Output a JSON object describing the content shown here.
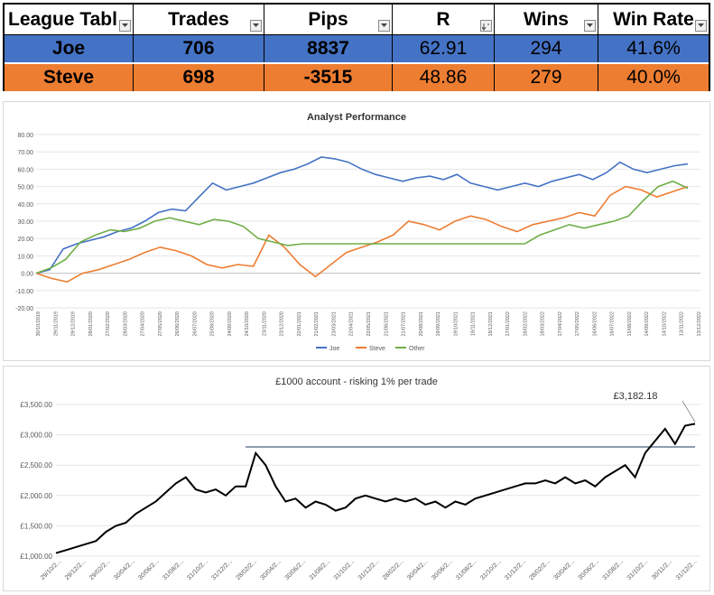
{
  "league": {
    "headers": [
      "League Tabl",
      "Trades",
      "Pips",
      "R",
      "Wins",
      "Win Rate"
    ],
    "rows": [
      {
        "name": "Joe",
        "trades": "706",
        "pips": "8837",
        "r": "62.91",
        "wins": "294",
        "win_rate": "41.6%"
      },
      {
        "name": "Steve",
        "trades": "698",
        "pips": "-3515",
        "r": "48.86",
        "wins": "279",
        "win_rate": "40.0%"
      }
    ],
    "filter_icon": "dropdown-arrow-icon",
    "sort_icon": "sort-desc-icon",
    "colors": {
      "joe": "#4472c4",
      "steve": "#ed7d31"
    }
  },
  "chart_data": [
    {
      "type": "line",
      "title": "Analyst Performance",
      "ylim": [
        -20,
        80
      ],
      "yticks": [
        "80.00",
        "70.00",
        "60.00",
        "50.00",
        "40.00",
        "30.00",
        "20.00",
        "10.00",
        "0.00",
        "-10.00",
        "-20.00"
      ],
      "x_tick_labels": [
        "30/10/2019",
        "29/11/2019",
        "29/12/2019",
        "28/01/2020",
        "27/02/2020",
        "28/03/2020",
        "27/04/2020",
        "27/05/2020",
        "26/06/2020",
        "26/07/2020",
        "25/08/2020",
        "24/09/2020",
        "24/10/2020",
        "23/11/2020",
        "23/12/2020",
        "22/01/2021",
        "21/02/2021",
        "23/03/2021",
        "22/04/2021",
        "22/05/2021",
        "21/06/2021",
        "21/07/2021",
        "20/08/2021",
        "19/09/2021",
        "19/10/2021",
        "18/11/2021",
        "18/12/2021",
        "17/01/2022",
        "16/02/2022",
        "18/03/2022",
        "17/04/2022",
        "17/05/2022",
        "16/06/2022",
        "16/07/2022",
        "15/08/2022",
        "14/09/2022",
        "14/10/2022",
        "13/11/2022",
        "13/12/2022"
      ],
      "legend_position": "bottom",
      "grid": true,
      "series": [
        {
          "name": "Joe",
          "color": "#4472c4",
          "values": [
            0,
            2,
            14,
            17,
            19,
            21,
            24,
            26,
            30,
            35,
            37,
            36,
            44,
            52,
            48,
            50,
            52,
            55,
            58,
            60,
            63,
            67,
            66,
            64,
            60,
            57,
            55,
            53,
            55,
            56,
            54,
            57,
            52,
            50,
            48,
            50,
            52,
            50,
            53,
            55,
            57,
            54,
            58,
            64,
            60,
            58,
            60,
            62,
            63
          ]
        },
        {
          "name": "Steve",
          "color": "#ed7d31",
          "values": [
            0,
            -3,
            -5,
            0,
            2,
            5,
            8,
            12,
            15,
            13,
            10,
            5,
            3,
            5,
            4,
            22,
            15,
            5,
            -2,
            5,
            12,
            15,
            18,
            22,
            30,
            28,
            25,
            30,
            33,
            31,
            27,
            24,
            28,
            30,
            32,
            35,
            33,
            45,
            50,
            48,
            44,
            47,
            50
          ]
        },
        {
          "name": "Other",
          "color": "#70ad47",
          "values": [
            0,
            3,
            8,
            18,
            22,
            25,
            24,
            26,
            30,
            32,
            30,
            28,
            31,
            30,
            27,
            20,
            18,
            16,
            17,
            17,
            17,
            17,
            17,
            17,
            17,
            17,
            17,
            17,
            17,
            17,
            17,
            17,
            17,
            17,
            22,
            25,
            28,
            26,
            28,
            30,
            33,
            42,
            50,
            53,
            49
          ]
        }
      ]
    },
    {
      "type": "line",
      "title": "£1000 account - risking 1% per trade",
      "ylim": [
        1000,
        3500
      ],
      "yticks": [
        "£3,500.00",
        "£3,000.00",
        "£2,500.00",
        "£2,000.00",
        "£1,500.00",
        "£1,000.00"
      ],
      "x_tick_labels": [
        "29/10/2...",
        "29/12/2...",
        "29/02/2...",
        "30/04/2...",
        "30/06/2...",
        "31/08/2...",
        "31/10/2...",
        "31/12/2...",
        "28/02/2...",
        "30/04/2...",
        "30/06/2...",
        "31/08/2...",
        "31/10/2...",
        "31/12/2...",
        "28/02/2...",
        "30/04/2...",
        "30/06/2...",
        "31/08/2...",
        "31/10/2...",
        "31/12/2...",
        "28/02/2...",
        "30/04/2...",
        "30/06/2...",
        "31/08/2...",
        "31/10/2...",
        "30/11/2...",
        "31/12/2..."
      ],
      "annotation": "£3,182.18",
      "reference_line": 2800,
      "series": [
        {
          "name": "",
          "color": "#000000",
          "values": [
            1050,
            1100,
            1150,
            1200,
            1250,
            1400,
            1500,
            1550,
            1700,
            1800,
            1900,
            2050,
            2200,
            2300,
            2100,
            2050,
            2100,
            2000,
            2150,
            2150,
            2700,
            2500,
            2150,
            1900,
            1950,
            1800,
            1900,
            1850,
            1750,
            1800,
            1950,
            2000,
            1950,
            1900,
            1950,
            1900,
            1950,
            1850,
            1900,
            1800,
            1900,
            1850,
            1950,
            2000,
            2050,
            2100,
            2150,
            2200,
            2200,
            2250,
            2200,
            2300,
            2200,
            2250,
            2150,
            2300,
            2400,
            2500,
            2300,
            2700,
            2900,
            3100,
            2850,
            3150,
            3182
          ]
        }
      ]
    }
  ]
}
